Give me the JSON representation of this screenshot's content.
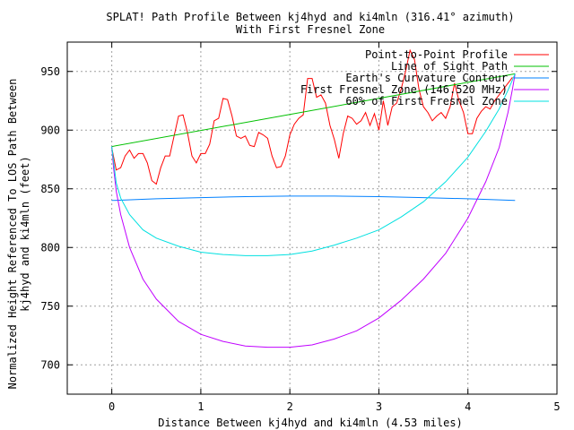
{
  "chart_data": {
    "type": "line",
    "title": "SPLAT! Path Profile Between kj4hyd and ki4mln (316.41° azimuth)",
    "subtitle": "With First Fresnel Zone",
    "xlabel": "Distance Between kj4hyd and ki4mln (4.53 miles)",
    "ylabel_line1": "Normalized Height Referenced To LOS Path Between",
    "ylabel_line2": "kj4hyd and ki4mln (feet)",
    "xlim": [
      -0.5,
      5
    ],
    "ylim": [
      675,
      975
    ],
    "x_ticks": [
      0,
      1,
      2,
      3,
      4,
      5
    ],
    "y_ticks": [
      700,
      750,
      800,
      850,
      900,
      950
    ],
    "grid": true,
    "legend_position": "top-right",
    "colors": {
      "profile": "#ff0000",
      "los": "#00c000",
      "curvature": "#0080ff",
      "fresnel": "#c000ff",
      "fresnel60": "#00e0e0"
    },
    "series": [
      {
        "name": "Point-to-Point Profile",
        "x": [
          0,
          0.05,
          0.1,
          0.15,
          0.2,
          0.25,
          0.3,
          0.35,
          0.4,
          0.45,
          0.5,
          0.55,
          0.6,
          0.65,
          0.7,
          0.75,
          0.8,
          0.85,
          0.9,
          0.95,
          1.0,
          1.05,
          1.1,
          1.15,
          1.2,
          1.25,
          1.3,
          1.35,
          1.4,
          1.45,
          1.5,
          1.55,
          1.6,
          1.65,
          1.7,
          1.75,
          1.8,
          1.85,
          1.9,
          1.95,
          2.0,
          2.05,
          2.1,
          2.15,
          2.2,
          2.25,
          2.3,
          2.35,
          2.4,
          2.45,
          2.5,
          2.55,
          2.6,
          2.65,
          2.7,
          2.75,
          2.8,
          2.85,
          2.9,
          2.95,
          3.0,
          3.05,
          3.1,
          3.15,
          3.2,
          3.25,
          3.3,
          3.35,
          3.4,
          3.45,
          3.5,
          3.55,
          3.6,
          3.65,
          3.7,
          3.75,
          3.8,
          3.85,
          3.9,
          3.95,
          4.0,
          4.05,
          4.1,
          4.15,
          4.2,
          4.25,
          4.3,
          4.35,
          4.4,
          4.45,
          4.5
        ],
        "values": [
          885,
          866,
          868,
          878,
          883,
          876,
          880,
          880,
          872,
          857,
          854,
          868,
          878,
          878,
          895,
          912,
          913,
          898,
          878,
          872,
          880,
          880,
          888,
          908,
          910,
          927,
          926,
          912,
          895,
          893,
          895,
          887,
          886,
          898,
          896,
          893,
          878,
          868,
          869,
          878,
          896,
          905,
          910,
          913,
          944,
          944,
          928,
          930,
          923,
          904,
          892,
          876,
          897,
          912,
          910,
          905,
          908,
          915,
          904,
          914,
          900,
          925,
          904,
          920,
          923,
          935,
          950,
          968,
          960,
          935,
          920,
          915,
          908,
          912,
          915,
          910,
          920,
          940,
          925,
          915,
          897,
          897,
          910,
          916,
          920,
          918,
          925,
          930,
          935,
          940,
          945
        ]
      },
      {
        "name": "Line of Sight Path",
        "x": [
          0,
          4.53
        ],
        "values": [
          886,
          948
        ]
      },
      {
        "name": "Earth's Curvature Contour",
        "x": [
          0,
          0.5,
          1.0,
          1.5,
          2.0,
          2.5,
          3.0,
          3.5,
          4.0,
          4.53
        ],
        "values": [
          840,
          841.5,
          842.5,
          843.3,
          843.8,
          843.8,
          843.3,
          842.5,
          841.5,
          840
        ]
      },
      {
        "name": "First Fresnel Zone (146.520 MHz)",
        "x": [
          0,
          0.02,
          0.05,
          0.1,
          0.2,
          0.35,
          0.5,
          0.75,
          1.0,
          1.25,
          1.5,
          1.75,
          2.0,
          2.25,
          2.5,
          2.75,
          3.0,
          3.25,
          3.5,
          3.75,
          4.0,
          4.2,
          4.35,
          4.45,
          4.5,
          4.53
        ],
        "values": [
          886,
          868,
          848,
          828,
          800,
          773,
          756,
          737,
          726,
          720,
          716,
          715,
          715,
          717,
          722,
          729,
          740,
          755,
          773,
          795,
          825,
          856,
          885,
          915,
          935,
          948
        ]
      },
      {
        "name": "60% of First Fresnel Zone",
        "x": [
          0,
          0.05,
          0.1,
          0.2,
          0.35,
          0.5,
          0.75,
          1.0,
          1.25,
          1.5,
          1.75,
          2.0,
          2.25,
          2.5,
          2.75,
          3.0,
          3.25,
          3.5,
          3.75,
          4.0,
          4.2,
          4.35,
          4.45,
          4.53
        ],
        "values": [
          886,
          855,
          842,
          828,
          815,
          808,
          801,
          796,
          794,
          793,
          793,
          794,
          797,
          802,
          808,
          815,
          826,
          839,
          856,
          877,
          899,
          918,
          934,
          948
        ]
      }
    ]
  }
}
